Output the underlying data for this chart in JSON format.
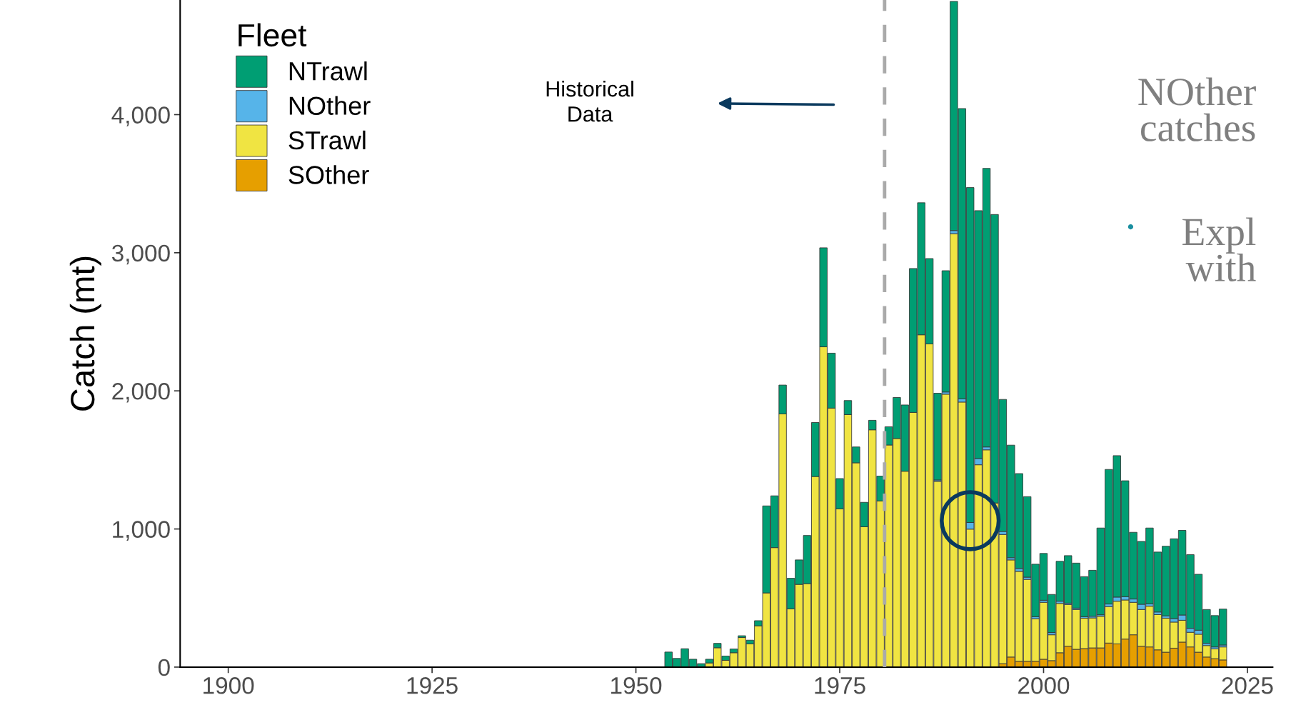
{
  "chart_data": {
    "type": "bar",
    "stacked": true,
    "ylabel": "Catch (mt)",
    "legend_title": "Fleet",
    "legend": "top left",
    "x": [
      1954,
      1955,
      1956,
      1957,
      1958,
      1959,
      1960,
      1961,
      1962,
      1963,
      1964,
      1965,
      1966,
      1967,
      1968,
      1969,
      1970,
      1971,
      1972,
      1973,
      1974,
      1975,
      1976,
      1977,
      1978,
      1979,
      1980,
      1981,
      1982,
      1983,
      1984,
      1985,
      1986,
      1987,
      1988,
      1989,
      1990,
      1991,
      1992,
      1993,
      1994,
      1995,
      1996,
      1997,
      1998,
      1999,
      2000,
      2001,
      2002,
      2003,
      2004,
      2005,
      2006,
      2007,
      2008,
      2009,
      2010,
      2011,
      2012,
      2013,
      2014,
      2015,
      2016,
      2017,
      2018,
      2019,
      2020,
      2021,
      2022
    ],
    "series": [
      {
        "name": "SOther",
        "color": "#e69f00",
        "values": [
          null,
          null,
          null,
          null,
          null,
          null,
          null,
          null,
          null,
          null,
          null,
          null,
          null,
          null,
          null,
          null,
          null,
          null,
          null,
          null,
          null,
          null,
          null,
          null,
          null,
          null,
          null,
          null,
          null,
          null,
          null,
          null,
          null,
          null,
          null,
          null,
          null,
          null,
          null,
          null,
          null,
          25,
          73,
          42,
          42,
          42,
          57,
          47,
          104,
          151,
          129,
          134,
          139,
          139,
          174,
          168,
          203,
          234,
          151,
          146,
          125,
          108,
          137,
          181,
          146,
          108,
          73,
          61,
          52
        ]
      },
      {
        "name": "STrawl",
        "color": "#f0e442",
        "values": [
          null,
          null,
          null,
          null,
          null,
          30,
          140,
          49,
          104,
          214,
          168,
          299,
          537,
          865,
          1833,
          422,
          599,
          604,
          1380,
          2319,
          1875,
          1146,
          1828,
          1479,
          1016,
          1718,
          1203,
          1608,
          1655,
          1418,
          1844,
          2406,
          2340,
          1345,
          1976,
          3138,
          1919,
          999,
          1465,
          1573,
          1188,
          935,
          703,
          651,
          593,
          308,
          412,
          187,
          357,
          302,
          288,
          220,
          217,
          229,
          264,
          309,
          283,
          235,
          266,
          295,
          255,
          246,
          189,
          158,
          106,
          130,
          83,
          71,
          94
        ]
      },
      {
        "name": "NOther",
        "color": "#56b4e9",
        "values": [
          null,
          null,
          null,
          null,
          null,
          null,
          null,
          null,
          null,
          null,
          null,
          null,
          null,
          null,
          null,
          null,
          null,
          null,
          null,
          null,
          null,
          null,
          null,
          null,
          null,
          null,
          null,
          null,
          null,
          null,
          null,
          null,
          null,
          10,
          16,
          23,
          23,
          48,
          45,
          21,
          null,
          22,
          16,
          21,
          16,
          15,
          15,
          16,
          16,
          10,
          10,
          11,
          12,
          11,
          19,
          30,
          24,
          24,
          38,
          17,
          19,
          17,
          25,
          38,
          29,
          29,
          16,
          14,
          14
        ]
      },
      {
        "name": "NTrawl",
        "color": "#009e73",
        "values": [
          109,
          63,
          133,
          57,
          25,
          27,
          32,
          31,
          27,
          13,
          27,
          37,
          630,
          375,
          209,
          221,
          177,
          349,
          391,
          717,
          398,
          219,
          102,
          115,
          177,
          69,
          180,
          132,
          297,
          480,
          1042,
          956,
          618,
          628,
          878,
          1659,
          2102,
          2425,
          1795,
          2017,
          2089,
          956,
          815,
          687,
          583,
          380,
          339,
          276,
          289,
          344,
          326,
          290,
          333,
          628,
          974,
          1024,
          839,
          483,
          455,
          549,
          434,
          504,
          578,
          613,
          533,
          405,
          245,
          227,
          260
        ]
      }
    ],
    "xlim": [
      1894.1,
      2028.1
    ],
    "xticks": [
      1900,
      1925,
      1950,
      1975,
      2000,
      2025
    ],
    "ylim": [
      0,
      4830
    ],
    "yticks": [
      0,
      {
        "value": 1000,
        "label": "1,000"
      },
      {
        "value": 2000,
        "label": "2,000"
      },
      {
        "value": 3000,
        "label": "3,000"
      },
      {
        "value": 4000,
        "label": "4,000"
      }
    ],
    "grid": false,
    "ref_lines": [
      {
        "axis": "x",
        "value": 1980.5,
        "color": "#aaaaaa",
        "line_style": "dashed"
      }
    ],
    "annotations": [
      "Historical\nData",
      "NOther\ncatches",
      "Expl\nwith"
    ]
  }
}
